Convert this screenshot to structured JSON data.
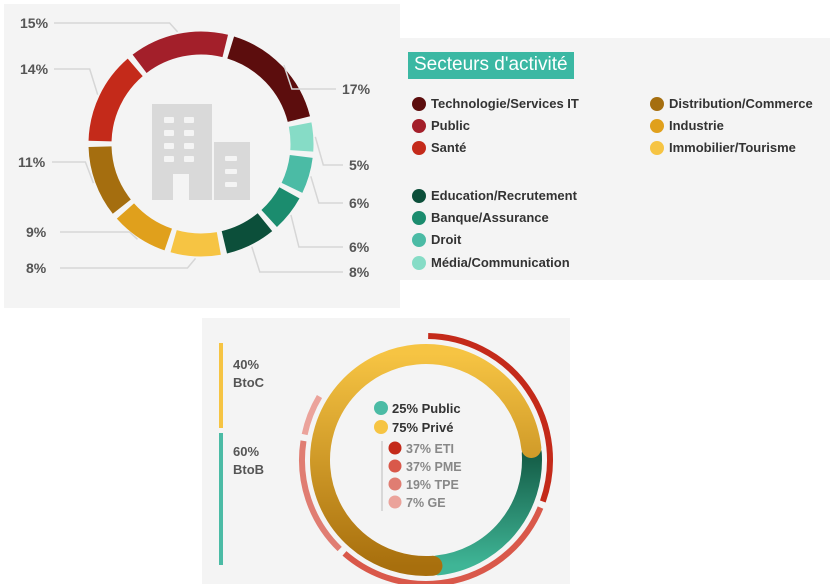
{
  "chart_data": [
    {
      "type": "pie",
      "title": "Secteurs d'activité",
      "series": [
        {
          "name": "Technologie/Services IT",
          "value": 17,
          "label": "17%",
          "color": "#5c0d0d"
        },
        {
          "name": "Média/Communication",
          "value": 5,
          "label": "5%",
          "color": "#86dcc6"
        },
        {
          "name": "Droit",
          "value": 6,
          "label": "6%",
          "color": "#4bbba5"
        },
        {
          "name": "Banque/Assurance",
          "value": 6,
          "label": "6%",
          "color": "#1b8c6e"
        },
        {
          "name": "Education/Recrutement",
          "value": 8,
          "label": "8%",
          "color": "#0c4f3a"
        },
        {
          "name": "Immobilier/Tourisme",
          "value": 8,
          "label": "8%",
          "color": "#f6c443"
        },
        {
          "name": "Industrie",
          "value": 9,
          "label": "9%",
          "color": "#e0a01c"
        },
        {
          "name": "Distribution/Commerce",
          "value": 11,
          "label": "11%",
          "color": "#a56e0f"
        },
        {
          "name": "Santé",
          "value": 14,
          "label": "14%",
          "color": "#c42a1a"
        },
        {
          "name": "Public",
          "value": 15,
          "label": "15%",
          "color": "#a31f2a"
        }
      ],
      "legend": {
        "left_column": [
          "Technologie/Services IT",
          "Public",
          "Santé",
          "Education/Recrutement",
          "Banque/Assurance",
          "Droit",
          "Média/Communication"
        ],
        "right_column": [
          "Distribution/Commerce",
          "Industrie",
          "Immobilier/Tourisme"
        ]
      }
    },
    {
      "type": "pie",
      "title": "",
      "sides": [
        {
          "pct": "40%",
          "name": "BtoC",
          "value": 40,
          "color": "#f6c443"
        },
        {
          "pct": "60%",
          "name": "BtoB",
          "value": 60,
          "color": "#4bbba5"
        }
      ],
      "inner_ring": [
        {
          "name": "Public",
          "value": 25,
          "label": "25% Public",
          "color": "#2f9e81"
        },
        {
          "name": "Privé",
          "value": 75,
          "label": "75% Privé",
          "color": "#f6c443"
        }
      ],
      "outer_ring": [
        {
          "name": "ETI",
          "value": 37,
          "label": "37% ETI",
          "color": "#c42a1a"
        },
        {
          "name": "PME",
          "value": 37,
          "label": "37% PME",
          "color": "#d9584a"
        },
        {
          "name": "TPE",
          "value": 19,
          "label": "19% TPE",
          "color": "#e07d72"
        },
        {
          "name": "GE",
          "value": 7,
          "label": "7% GE",
          "color": "#eba39b"
        }
      ],
      "legend_colors": {
        "public": "#4bbba5",
        "prive": "#f6c443"
      }
    }
  ]
}
